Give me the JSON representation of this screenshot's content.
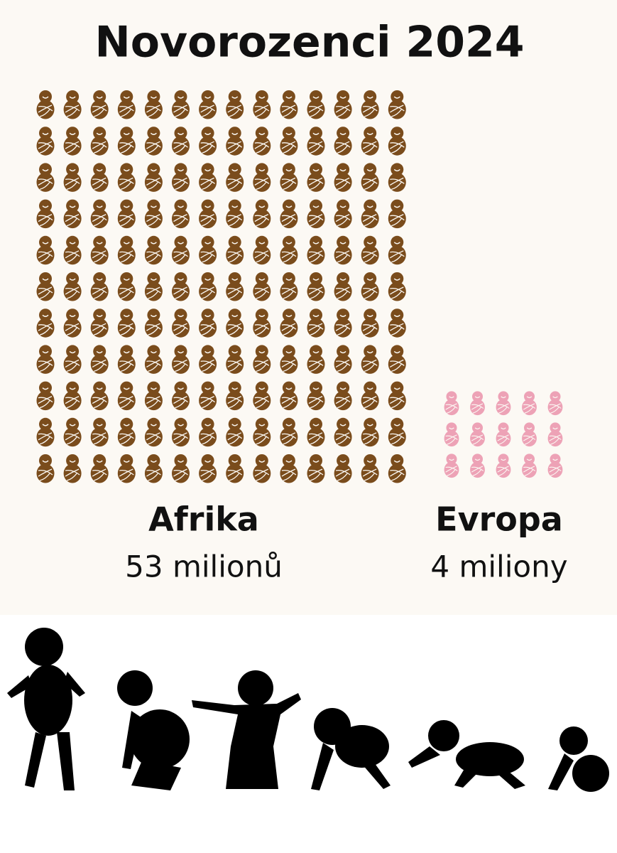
{
  "header": {
    "title": "Novorozenci 2024"
  },
  "groups": [
    {
      "label": "Afrika",
      "value": "53 milionů"
    },
    {
      "label": "Evropa",
      "value": "4 miliony"
    }
  ]
}
